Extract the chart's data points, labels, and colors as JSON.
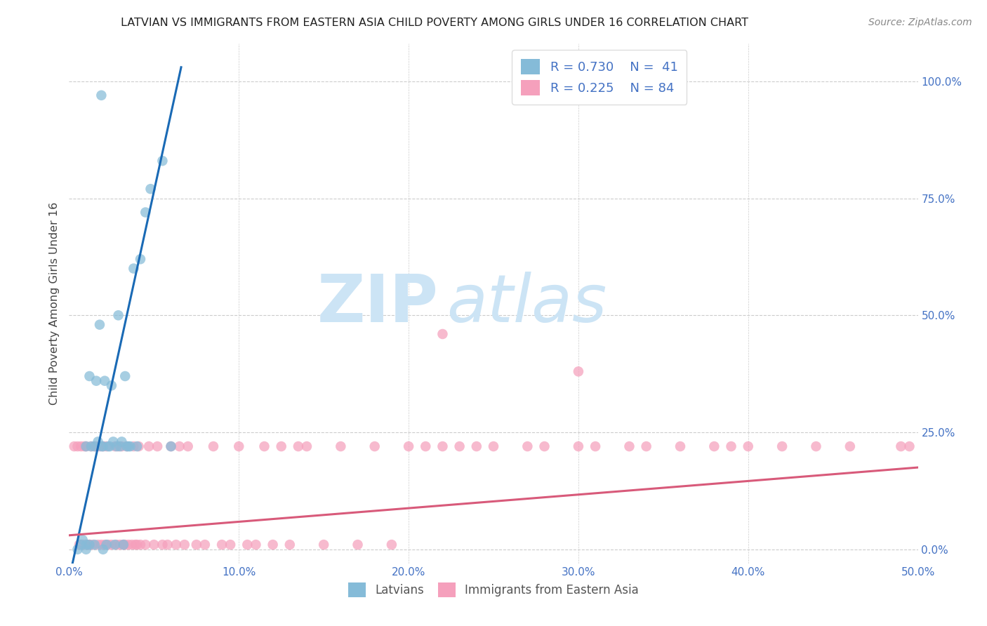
{
  "title": "LATVIAN VS IMMIGRANTS FROM EASTERN ASIA CHILD POVERTY AMONG GIRLS UNDER 16 CORRELATION CHART",
  "source": "Source: ZipAtlas.com",
  "ylabel": "Child Poverty Among Girls Under 16",
  "xlim": [
    0.0,
    0.5
  ],
  "ylim": [
    -0.03,
    1.08
  ],
  "xticks": [
    0.0,
    0.1,
    0.2,
    0.3,
    0.4,
    0.5
  ],
  "xticklabels": [
    "0.0%",
    "10.0%",
    "20.0%",
    "30.0%",
    "40.0%",
    "50.0%"
  ],
  "yticks_right": [
    0.0,
    0.25,
    0.5,
    0.75,
    1.0
  ],
  "yticklabels_right": [
    "0.0%",
    "25.0%",
    "50.0%",
    "75.0%",
    "100.0%"
  ],
  "blue_color": "#85bbd8",
  "pink_color": "#f5a0bc",
  "blue_line_color": "#1a6ab5",
  "pink_line_color": "#d85a7a",
  "blue_scatter_x": [
    0.005,
    0.007,
    0.008,
    0.01,
    0.01,
    0.01,
    0.012,
    0.012,
    0.013,
    0.015,
    0.015,
    0.016,
    0.017,
    0.018,
    0.019,
    0.02,
    0.02,
    0.021,
    0.022,
    0.023,
    0.024,
    0.025,
    0.026,
    0.027,
    0.028,
    0.029,
    0.03,
    0.031,
    0.032,
    0.033,
    0.034,
    0.035,
    0.036,
    0.038,
    0.04,
    0.042,
    0.045,
    0.048,
    0.055,
    0.06,
    0.019
  ],
  "blue_scatter_y": [
    0.0,
    0.01,
    0.02,
    0.0,
    0.01,
    0.22,
    0.01,
    0.37,
    0.22,
    0.01,
    0.22,
    0.36,
    0.23,
    0.48,
    0.22,
    0.0,
    0.22,
    0.36,
    0.01,
    0.22,
    0.22,
    0.35,
    0.23,
    0.01,
    0.22,
    0.5,
    0.22,
    0.23,
    0.01,
    0.37,
    0.22,
    0.22,
    0.22,
    0.6,
    0.22,
    0.62,
    0.72,
    0.77,
    0.83,
    0.22,
    0.97
  ],
  "pink_scatter_x": [
    0.003,
    0.005,
    0.006,
    0.007,
    0.008,
    0.009,
    0.01,
    0.011,
    0.012,
    0.013,
    0.014,
    0.015,
    0.016,
    0.017,
    0.018,
    0.019,
    0.02,
    0.021,
    0.022,
    0.023,
    0.025,
    0.027,
    0.028,
    0.029,
    0.03,
    0.031,
    0.032,
    0.033,
    0.034,
    0.035,
    0.037,
    0.038,
    0.039,
    0.04,
    0.041,
    0.042,
    0.045,
    0.047,
    0.05,
    0.052,
    0.055,
    0.058,
    0.06,
    0.063,
    0.065,
    0.068,
    0.07,
    0.075,
    0.08,
    0.085,
    0.09,
    0.095,
    0.1,
    0.105,
    0.11,
    0.115,
    0.12,
    0.125,
    0.13,
    0.135,
    0.14,
    0.15,
    0.16,
    0.17,
    0.18,
    0.19,
    0.2,
    0.21,
    0.22,
    0.23,
    0.24,
    0.25,
    0.27,
    0.28,
    0.3,
    0.31,
    0.33,
    0.34,
    0.36,
    0.38,
    0.39,
    0.4,
    0.42,
    0.44,
    0.46,
    0.22,
    0.3,
    0.49,
    0.495
  ],
  "pink_scatter_y": [
    0.22,
    0.22,
    0.01,
    0.22,
    0.01,
    0.22,
    0.22,
    0.01,
    0.01,
    0.22,
    0.01,
    0.22,
    0.22,
    0.01,
    0.22,
    0.01,
    0.22,
    0.01,
    0.22,
    0.01,
    0.01,
    0.22,
    0.01,
    0.22,
    0.01,
    0.22,
    0.01,
    0.01,
    0.22,
    0.01,
    0.01,
    0.22,
    0.01,
    0.01,
    0.22,
    0.01,
    0.01,
    0.22,
    0.01,
    0.22,
    0.01,
    0.01,
    0.22,
    0.01,
    0.22,
    0.01,
    0.22,
    0.01,
    0.01,
    0.22,
    0.01,
    0.01,
    0.22,
    0.01,
    0.01,
    0.22,
    0.01,
    0.22,
    0.01,
    0.22,
    0.22,
    0.01,
    0.22,
    0.01,
    0.22,
    0.01,
    0.22,
    0.22,
    0.22,
    0.22,
    0.22,
    0.22,
    0.22,
    0.22,
    0.22,
    0.22,
    0.22,
    0.22,
    0.22,
    0.22,
    0.22,
    0.22,
    0.22,
    0.22,
    0.22,
    0.46,
    0.38,
    0.22,
    0.22
  ],
  "blue_line_x": [
    0.002,
    0.066
  ],
  "blue_line_y": [
    -0.03,
    1.03
  ],
  "pink_line_x": [
    0.0,
    0.5
  ],
  "pink_line_y": [
    0.03,
    0.175
  ],
  "watermark_top": "ZIP",
  "watermark_bot": "atlas",
  "watermark_color": "#cce4f5",
  "title_fontsize": 11.5,
  "source_fontsize": 10,
  "axis_label_fontsize": 11.5,
  "tick_fontsize": 11,
  "legend_fontsize": 13
}
